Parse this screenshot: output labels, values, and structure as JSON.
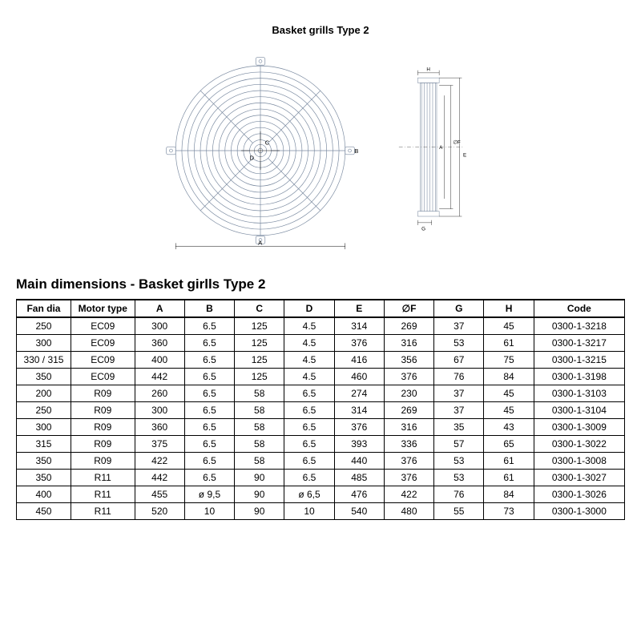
{
  "title_small": "Basket grills Type 2",
  "section_heading": "Main dimensions - Basket girlls Type 2",
  "diagram": {
    "stroke": "#7a8aa0",
    "stroke_width": 0.7,
    "rings": 13,
    "spokes": 8,
    "dim_labels": {
      "A": "A",
      "B": "B",
      "C": "C",
      "D": "D",
      "E": "E",
      "F": "F",
      "G": "G",
      "H": "H"
    }
  },
  "table": {
    "columns": [
      "Fan dia",
      "Motor type",
      "A",
      "B",
      "C",
      "D",
      "E",
      "∅F",
      "G",
      "H",
      "Code"
    ],
    "rows": [
      [
        "250",
        "EC09",
        "300",
        "6.5",
        "125",
        "4.5",
        "314",
        "269",
        "37",
        "45",
        "0300-1-3218"
      ],
      [
        "300",
        "EC09",
        "360",
        "6.5",
        "125",
        "4.5",
        "376",
        "316",
        "53",
        "61",
        "0300-1-3217"
      ],
      [
        "330 / 315",
        "EC09",
        "400",
        "6.5",
        "125",
        "4.5",
        "416",
        "356",
        "67",
        "75",
        "0300-1-3215"
      ],
      [
        "350",
        "EC09",
        "442",
        "6.5",
        "125",
        "4.5",
        "460",
        "376",
        "76",
        "84",
        "0300-1-3198"
      ],
      [
        "200",
        "R09",
        "260",
        "6.5",
        "58",
        "6.5",
        "274",
        "230",
        "37",
        "45",
        "0300-1-3103"
      ],
      [
        "250",
        "R09",
        "300",
        "6.5",
        "58",
        "6.5",
        "314",
        "269",
        "37",
        "45",
        "0300-1-3104"
      ],
      [
        "300",
        "R09",
        "360",
        "6.5",
        "58",
        "6.5",
        "376",
        "316",
        "35",
        "43",
        "0300-1-3009"
      ],
      [
        "315",
        "R09",
        "375",
        "6.5",
        "58",
        "6.5",
        "393",
        "336",
        "57",
        "65",
        "0300-1-3022"
      ],
      [
        "350",
        "R09",
        "422",
        "6.5",
        "58",
        "6.5",
        "440",
        "376",
        "53",
        "61",
        "0300-1-3008"
      ],
      [
        "350",
        "R11",
        "442",
        "6.5",
        "90",
        "6.5",
        "485",
        "376",
        "53",
        "61",
        "0300-1-3027"
      ],
      [
        "400",
        "R11",
        "455",
        "ø 9,5",
        "90",
        "ø 6,5",
        "476",
        "422",
        "76",
        "84",
        "0300-1-3026"
      ],
      [
        "450",
        "R11",
        "520",
        "10",
        "90",
        "10",
        "540",
        "480",
        "55",
        "73",
        "0300-1-3000"
      ]
    ]
  }
}
